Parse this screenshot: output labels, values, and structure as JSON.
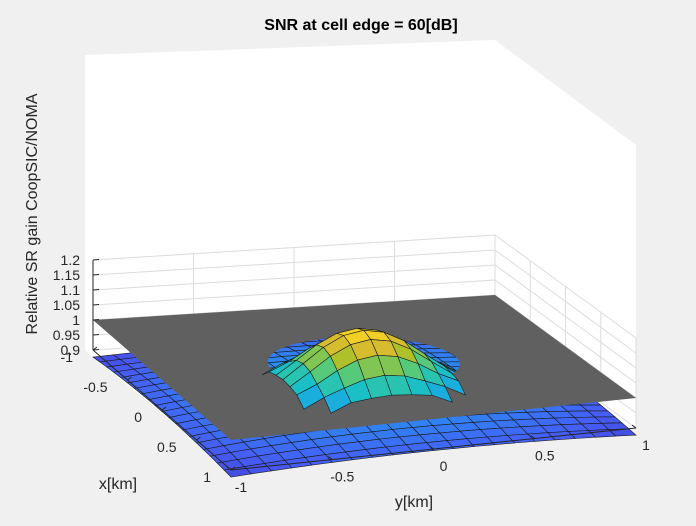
{
  "chart_data": {
    "type": "surface",
    "title": "SNR at cell edge = 60[dB]",
    "xlabel": "x[km]",
    "ylabel": "y[km]",
    "zlabel": "Relative SR gain CoopSIC/NOMA",
    "xlim": [
      -1,
      1
    ],
    "ylim": [
      -1,
      1
    ],
    "zlim": [
      0.9,
      1.2
    ],
    "x_ticks": [
      "-1",
      "-0.5",
      "0",
      "0.5",
      "1"
    ],
    "y_ticks": [
      "-1",
      "-0.5",
      "0",
      "0.5",
      "1"
    ],
    "z_ticks": [
      "0.9",
      "0.95",
      "1",
      "1.05",
      "1.1",
      "1.15",
      "1.2"
    ],
    "grid": true,
    "reference_plane_z": 1.0,
    "center_peak_z": 1.11,
    "peak_base_radius_km": 0.45,
    "corner_min_z": 0.85,
    "colors": {
      "background": "#f0f0f0",
      "axes_background": "#ffffff",
      "plane": "#606060",
      "low": "#3e26a8",
      "high": "#f9fb15"
    }
  }
}
